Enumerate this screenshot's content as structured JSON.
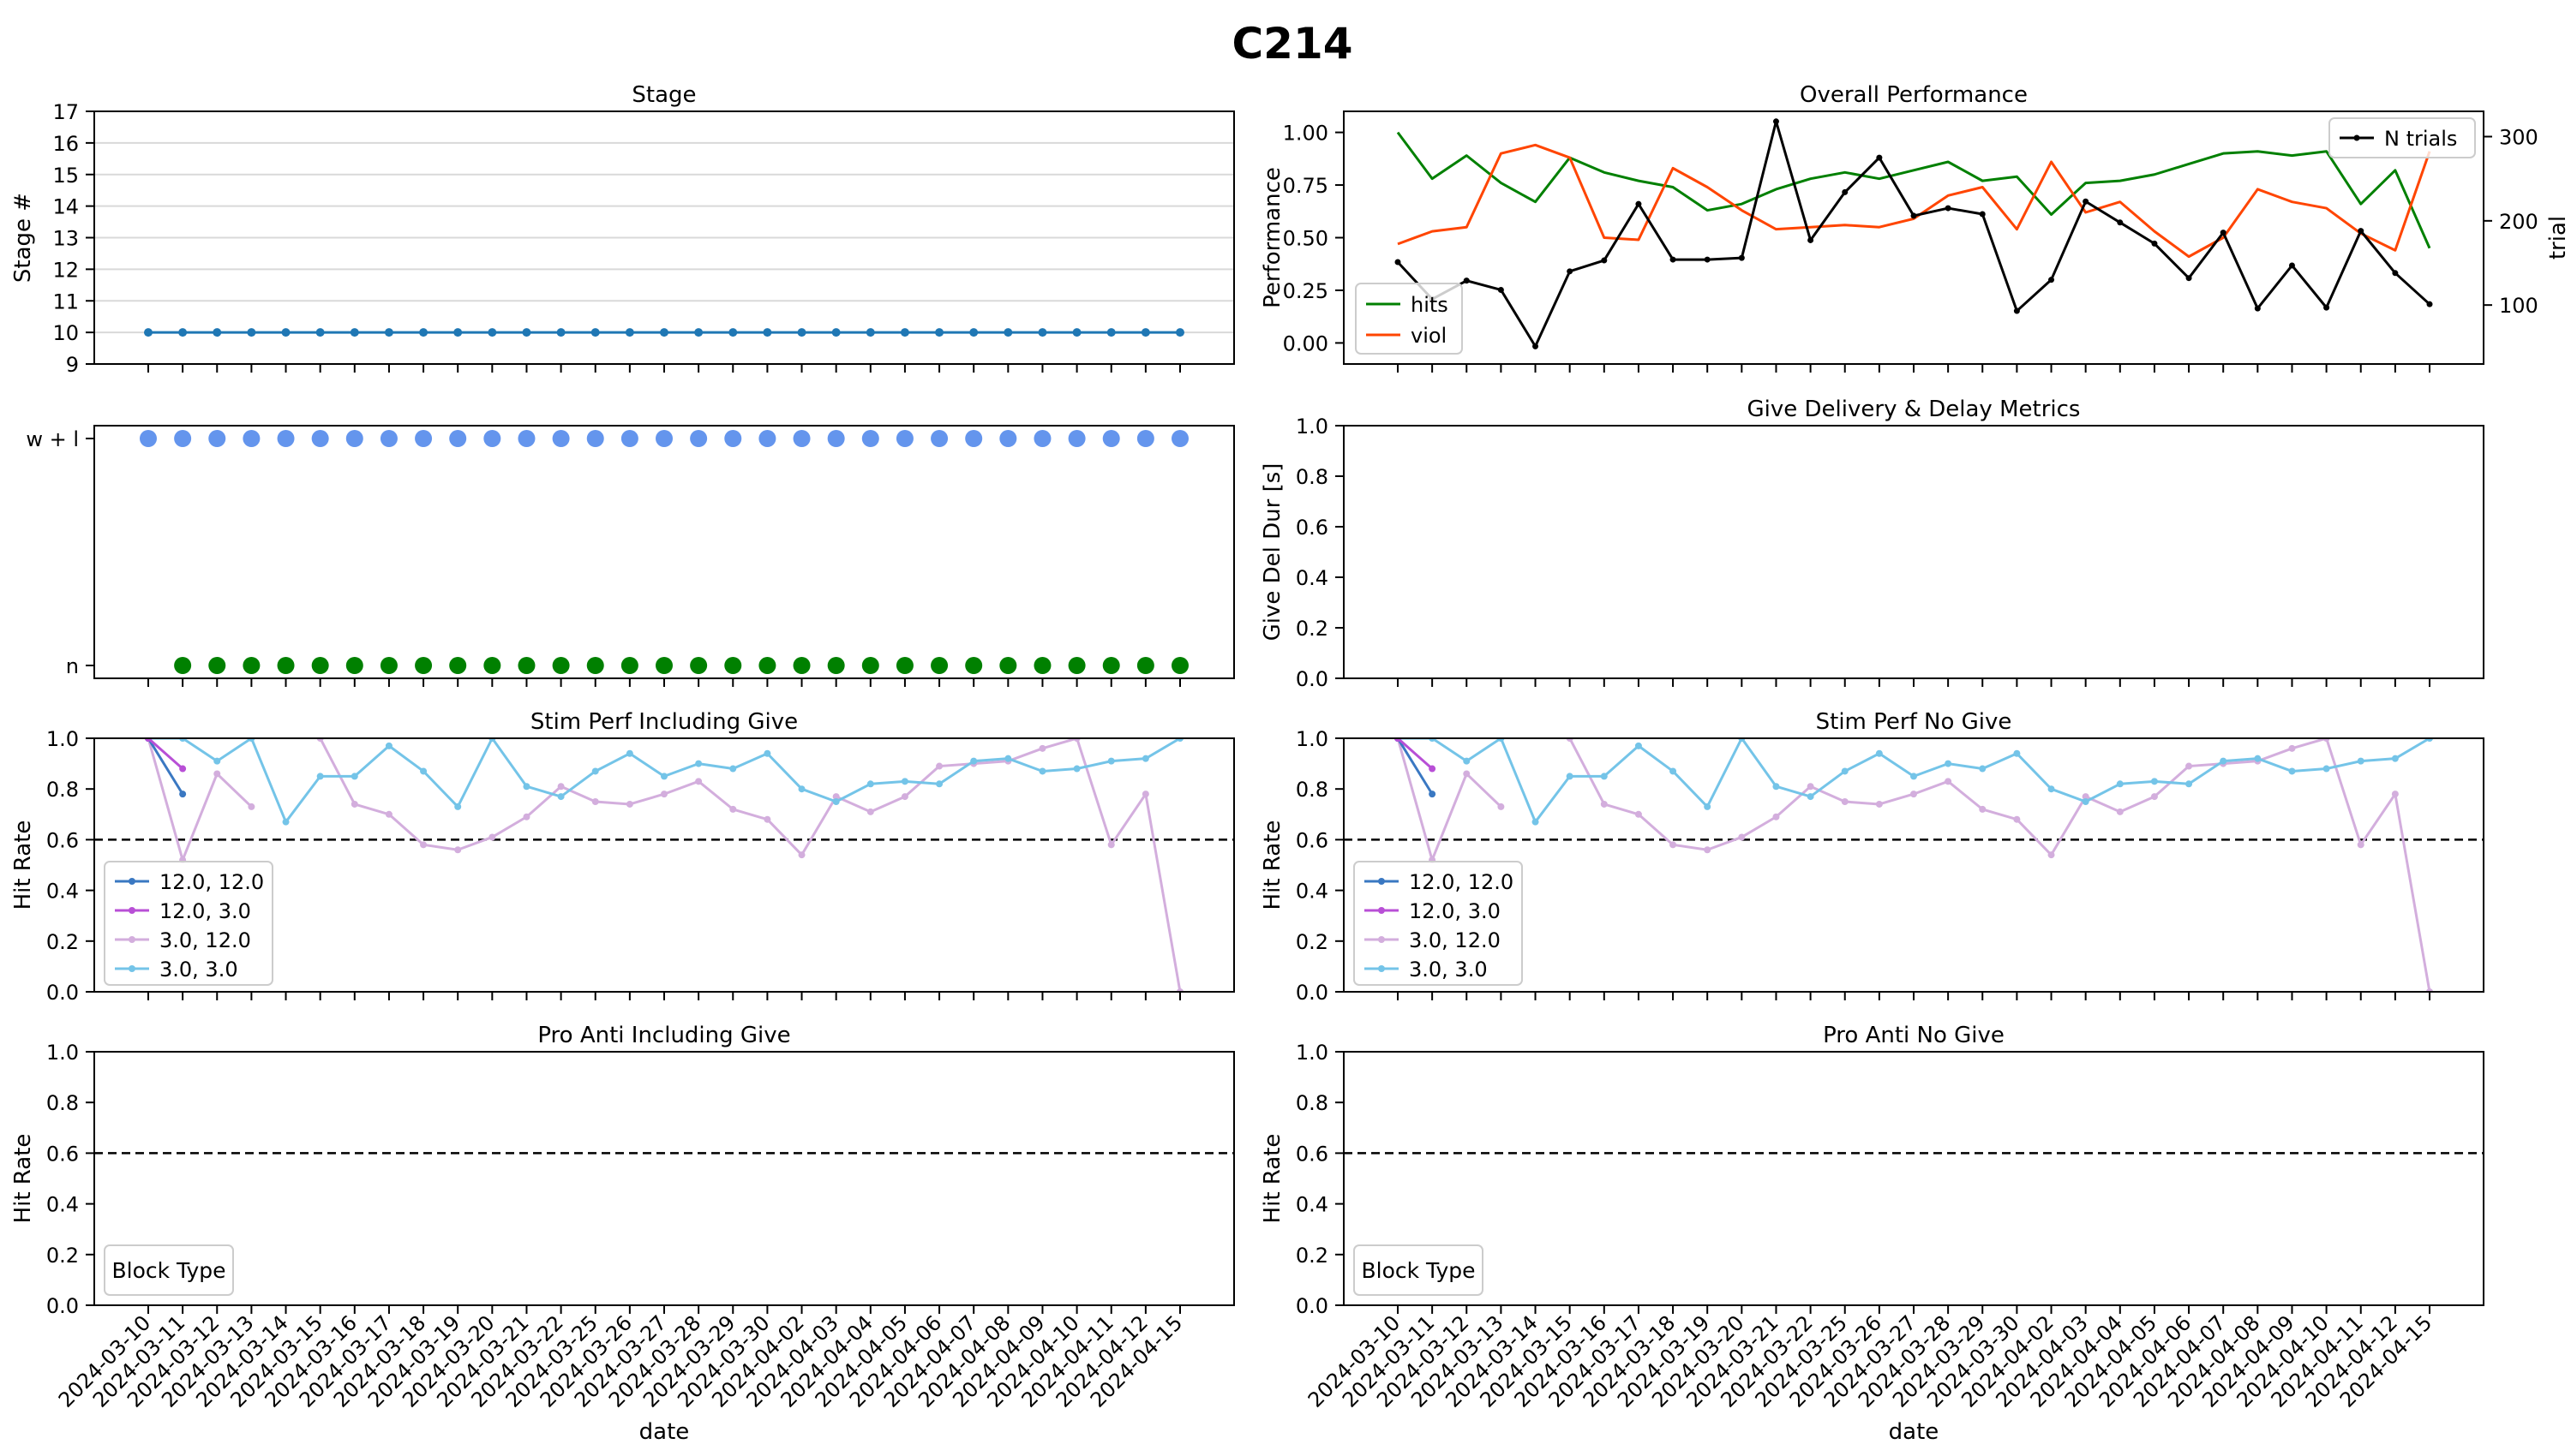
{
  "figure_title": "C214",
  "dates": [
    "2024-03-10",
    "2024-03-11",
    "2024-03-12",
    "2024-03-13",
    "2024-03-14",
    "2024-03-15",
    "2024-03-16",
    "2024-03-17",
    "2024-03-18",
    "2024-03-19",
    "2024-03-20",
    "2024-03-21",
    "2024-03-22",
    "2024-03-25",
    "2024-03-26",
    "2024-03-27",
    "2024-03-28",
    "2024-03-29",
    "2024-03-30",
    "2024-04-02",
    "2024-04-03",
    "2024-04-04",
    "2024-04-05",
    "2024-04-06",
    "2024-04-07",
    "2024-04-08",
    "2024-04-09",
    "2024-04-10",
    "2024-04-11",
    "2024-04-12",
    "2024-04-15"
  ],
  "colors": {
    "stage": "#1f77b4",
    "wl": "#6495ed",
    "n": "#008000",
    "hits": "#008000",
    "viol": "#ff4500",
    "ntrials": "#000000",
    "s12_12": "#3a78c2",
    "s12_3": "#b84fd6",
    "s3_12": "#d3aedd",
    "s3_3": "#74c4e8"
  },
  "chart_data": [
    {
      "id": "stage",
      "type": "line",
      "title": "Stage",
      "xlabel": "",
      "ylabel": "Stage #",
      "ylim": [
        9,
        17
      ],
      "yticks": [
        "9",
        "10",
        "11",
        "12",
        "13",
        "14",
        "15",
        "16",
        "17"
      ],
      "grid": "y",
      "series": [
        {
          "values": [
            10,
            10,
            10,
            10,
            10,
            10,
            10,
            10,
            10,
            10,
            10,
            10,
            10,
            10,
            10,
            10,
            10,
            10,
            10,
            10,
            10,
            10,
            10,
            10,
            10,
            10,
            10,
            10,
            10,
            10,
            10
          ]
        }
      ]
    },
    {
      "id": "trialtype",
      "type": "scatter",
      "title": "",
      "ylabel": "",
      "ycategories": [
        "n",
        "w + l"
      ],
      "series": [
        {
          "category": "w + l",
          "present": [
            1,
            1,
            1,
            1,
            1,
            1,
            1,
            1,
            1,
            1,
            1,
            1,
            1,
            1,
            1,
            1,
            1,
            1,
            1,
            1,
            1,
            1,
            1,
            1,
            1,
            1,
            1,
            1,
            1,
            1,
            1
          ]
        },
        {
          "category": "n",
          "present": [
            0,
            1,
            1,
            1,
            1,
            1,
            1,
            1,
            1,
            1,
            1,
            1,
            1,
            1,
            1,
            1,
            1,
            1,
            1,
            1,
            1,
            1,
            1,
            1,
            1,
            1,
            1,
            1,
            1,
            1,
            1
          ]
        }
      ]
    },
    {
      "id": "overall",
      "type": "line",
      "title": "Overall Performance",
      "ylabel": "Performance",
      "ylabel_right": "trial",
      "ylim": [
        -0.1,
        1.1
      ],
      "yticks": [
        "0.00",
        "0.25",
        "0.50",
        "0.75",
        "1.00"
      ],
      "ylim_right": [
        30,
        330
      ],
      "yticks_right": [
        "100",
        "200",
        "300"
      ],
      "legend": "lower-left",
      "legend_right": "upper-right",
      "series": [
        {
          "name": "hits",
          "values": [
            1.0,
            0.78,
            0.89,
            0.76,
            0.67,
            0.88,
            0.81,
            0.77,
            0.74,
            0.63,
            0.66,
            0.73,
            0.78,
            0.81,
            0.78,
            0.82,
            0.86,
            0.77,
            0.79,
            0.61,
            0.76,
            0.77,
            0.8,
            0.85,
            0.9,
            0.91,
            0.89,
            0.91,
            0.66,
            0.82,
            0.45
          ]
        },
        {
          "name": "viol",
          "values": [
            0.47,
            0.53,
            0.55,
            0.9,
            0.94,
            0.88,
            0.5,
            0.49,
            0.83,
            0.74,
            0.63,
            0.54,
            0.55,
            0.56,
            0.55,
            0.59,
            0.7,
            0.74,
            0.54,
            0.86,
            0.62,
            0.67,
            0.53,
            0.41,
            0.5,
            0.73,
            0.67,
            0.64,
            0.52,
            0.44,
            0.91
          ]
        },
        {
          "name": "N trials",
          "axis": "right",
          "values": [
            151,
            107,
            129,
            118,
            51,
            140,
            153,
            220,
            154,
            154,
            156,
            318,
            177,
            234,
            275,
            206,
            215,
            208,
            93,
            130,
            223,
            198,
            173,
            132,
            186,
            96,
            147,
            97,
            188,
            138,
            101
          ]
        }
      ]
    },
    {
      "id": "give",
      "type": "line",
      "title": "Give Delivery & Delay Metrics",
      "ylabel": "Give Del Dur [s]",
      "ylim": [
        0,
        1
      ],
      "yticks": [
        "0.0",
        "0.2",
        "0.4",
        "0.6",
        "0.8",
        "1.0"
      ],
      "series": []
    },
    {
      "id": "stim_incl",
      "type": "line",
      "title": "Stim Perf Including Give",
      "ylabel": "Hit Rate",
      "ylim": [
        0,
        1
      ],
      "yticks": [
        "0.0",
        "0.2",
        "0.4",
        "0.6",
        "0.8",
        "1.0"
      ],
      "hline": 0.6,
      "legend": "lower-left",
      "series": [
        {
          "name": "12.0, 12.0",
          "values": [
            1.0,
            0.78,
            null,
            null,
            null,
            null,
            null,
            null,
            null,
            null,
            null,
            null,
            null,
            null,
            null,
            null,
            null,
            null,
            null,
            null,
            null,
            null,
            null,
            null,
            null,
            null,
            null,
            null,
            null,
            null,
            null
          ]
        },
        {
          "name": "12.0, 3.0",
          "values": [
            1.0,
            0.88,
            null,
            null,
            null,
            null,
            null,
            null,
            null,
            null,
            null,
            null,
            null,
            null,
            null,
            null,
            null,
            null,
            null,
            null,
            null,
            null,
            null,
            null,
            null,
            null,
            null,
            null,
            null,
            null,
            null
          ]
        },
        {
          "name": "3.0, 12.0",
          "values": [
            1.0,
            0.52,
            0.86,
            0.73,
            null,
            1.0,
            0.74,
            0.7,
            0.58,
            0.56,
            0.61,
            0.69,
            0.81,
            0.75,
            0.74,
            0.78,
            0.83,
            0.72,
            0.68,
            0.54,
            0.77,
            0.71,
            0.77,
            0.89,
            0.9,
            0.91,
            0.96,
            1.0,
            0.58,
            0.78,
            0.0
          ]
        },
        {
          "name": "3.0, 3.0",
          "values": [
            1.0,
            1.0,
            0.91,
            1.0,
            0.67,
            0.85,
            0.85,
            0.97,
            0.87,
            0.73,
            1.0,
            0.81,
            0.77,
            0.87,
            0.94,
            0.85,
            0.9,
            0.88,
            0.94,
            0.8,
            0.75,
            0.82,
            0.83,
            0.82,
            0.91,
            0.92,
            0.87,
            0.88,
            0.91,
            0.92,
            1.0
          ]
        }
      ]
    },
    {
      "id": "stim_nogive",
      "type": "line",
      "title": "Stim Perf No Give",
      "ylabel": "Hit Rate",
      "ylim": [
        0,
        1
      ],
      "yticks": [
        "0.0",
        "0.2",
        "0.4",
        "0.6",
        "0.8",
        "1.0"
      ],
      "hline": 0.6,
      "legend": "lower-left",
      "series": [
        {
          "name": "12.0, 12.0",
          "values": [
            1.0,
            0.78,
            null,
            null,
            null,
            null,
            null,
            null,
            null,
            null,
            null,
            null,
            null,
            null,
            null,
            null,
            null,
            null,
            null,
            null,
            null,
            null,
            null,
            null,
            null,
            null,
            null,
            null,
            null,
            null,
            null
          ]
        },
        {
          "name": "12.0, 3.0",
          "values": [
            1.0,
            0.88,
            null,
            null,
            null,
            null,
            null,
            null,
            null,
            null,
            null,
            null,
            null,
            null,
            null,
            null,
            null,
            null,
            null,
            null,
            null,
            null,
            null,
            null,
            null,
            null,
            null,
            null,
            null,
            null,
            null
          ]
        },
        {
          "name": "3.0, 12.0",
          "values": [
            1.0,
            0.52,
            0.86,
            0.73,
            null,
            1.0,
            0.74,
            0.7,
            0.58,
            0.56,
            0.61,
            0.69,
            0.81,
            0.75,
            0.74,
            0.78,
            0.83,
            0.72,
            0.68,
            0.54,
            0.77,
            0.71,
            0.77,
            0.89,
            0.9,
            0.91,
            0.96,
            1.0,
            0.58,
            0.78,
            0.0
          ]
        },
        {
          "name": "3.0, 3.0",
          "values": [
            1.0,
            1.0,
            0.91,
            1.0,
            0.67,
            0.85,
            0.85,
            0.97,
            0.87,
            0.73,
            1.0,
            0.81,
            0.77,
            0.87,
            0.94,
            0.85,
            0.9,
            0.88,
            0.94,
            0.8,
            0.75,
            0.82,
            0.83,
            0.82,
            0.91,
            0.92,
            0.87,
            0.88,
            0.91,
            0.92,
            1.0
          ]
        }
      ]
    },
    {
      "id": "proanti_incl",
      "type": "line",
      "title": "Pro Anti Including Give",
      "xlabel": "date",
      "ylabel": "Hit Rate",
      "ylim": [
        0,
        1
      ],
      "yticks": [
        "0.0",
        "0.2",
        "0.4",
        "0.6",
        "0.8",
        "1.0"
      ],
      "hline": 0.6,
      "legend": "lower-left",
      "legend_title": "Block Type",
      "series": []
    },
    {
      "id": "proanti_nogive",
      "type": "line",
      "title": "Pro Anti No Give",
      "xlabel": "date",
      "ylabel": "Hit Rate",
      "ylim": [
        0,
        1
      ],
      "yticks": [
        "0.0",
        "0.2",
        "0.4",
        "0.6",
        "0.8",
        "1.0"
      ],
      "hline": 0.6,
      "legend": "lower-left",
      "legend_title": "Block Type",
      "series": []
    }
  ]
}
